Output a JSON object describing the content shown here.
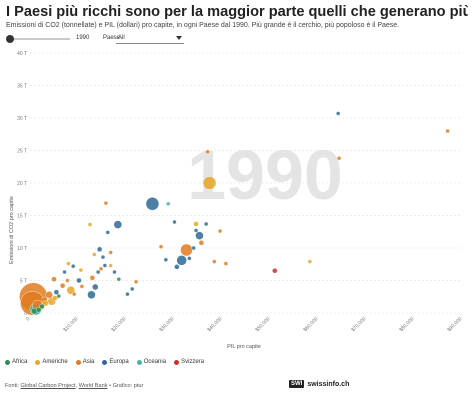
{
  "title": "I Paesi più ricchi sono per la maggior parte quelli che generano più emissioni",
  "subtitle": "Emissioni di CO2 (tonnellate) e PIL (dollari) pro capite, in ogni Paese dal 1990. Più grande è il cerchio, più popoloso è il Paese.",
  "controls": {
    "year": "1990",
    "paese_label": "Paese",
    "paese_value": "All"
  },
  "footer": {
    "prefix": "Fonti: ",
    "src1": "Global Carbon Project",
    "sep": ", ",
    "src2": "World Bank",
    "suffix": " • Grafico: ptur"
  },
  "brand": {
    "box": "SWI",
    "name": "swissinfo.ch"
  },
  "chart_data": {
    "type": "scatter",
    "year_watermark": "1990",
    "xlabel": "PIL pro capite",
    "ylabel": "Emissioni di CO2 pro capite",
    "xlim": [
      0,
      90000
    ],
    "ylim": [
      0,
      40
    ],
    "x_ticks": [
      0,
      10000,
      20000,
      30000,
      40000,
      50000,
      60000,
      70000,
      80000,
      90000
    ],
    "x_tick_labels": [
      "0",
      "$10,000",
      "$20,000",
      "$30,000",
      "$40,000",
      "$50,000",
      "$60,000",
      "$70,000",
      "$80,000",
      "$90,000"
    ],
    "y_ticks": [
      0,
      5,
      10,
      15,
      20,
      25,
      30,
      35,
      40
    ],
    "y_tick_labels": [
      "0",
      "5 T",
      "10 T",
      "15 T",
      "20 T",
      "25 T",
      "30 T",
      "35 T",
      "40 T"
    ],
    "series": [
      {
        "name": "Africa",
        "color": "#2e8b57"
      },
      {
        "name": "Americhe",
        "color": "#e8a623"
      },
      {
        "name": "Asia",
        "color": "#e07b1f"
      },
      {
        "name": "Europa",
        "color": "#2e6a95"
      },
      {
        "name": "Oceania",
        "color": "#45b5aa"
      },
      {
        "name": "Svizzera",
        "color": "#c9302c"
      }
    ],
    "points": [
      {
        "region": "Asia",
        "x": 500,
        "y": 1.5,
        "r": 12
      },
      {
        "region": "Asia",
        "x": 700,
        "y": 2.5,
        "r": 14
      },
      {
        "region": "Oceania",
        "x": 1200,
        "y": 0.6,
        "r": 6
      },
      {
        "region": "Asia",
        "x": 1500,
        "y": 1.2,
        "r": 5
      },
      {
        "region": "Africa",
        "x": 900,
        "y": 0.3,
        "r": 3
      },
      {
        "region": "Africa",
        "x": 1800,
        "y": 0.5,
        "r": 2.5
      },
      {
        "region": "Africa",
        "x": 2500,
        "y": 1.0,
        "r": 2.5
      },
      {
        "region": "Asia",
        "x": 3000,
        "y": 2.0,
        "r": 3
      },
      {
        "region": "Americhe",
        "x": 3200,
        "y": 1.5,
        "r": 3
      },
      {
        "region": "Asia",
        "x": 4000,
        "y": 2.8,
        "r": 3.5
      },
      {
        "region": "Americhe",
        "x": 4500,
        "y": 1.8,
        "r": 4
      },
      {
        "region": "Americhe",
        "x": 5200,
        "y": 2.3,
        "r": 2.5
      },
      {
        "region": "Europa",
        "x": 5500,
        "y": 3.2,
        "r": 2.5
      },
      {
        "region": "Africa",
        "x": 6000,
        "y": 2.6,
        "r": 2
      },
      {
        "region": "Asia",
        "x": 5000,
        "y": 5.2,
        "r": 2.5
      },
      {
        "region": "Asia",
        "x": 6800,
        "y": 4.2,
        "r": 2.5
      },
      {
        "region": "Europa",
        "x": 7200,
        "y": 6.3,
        "r": 2
      },
      {
        "region": "Asia",
        "x": 7800,
        "y": 5.0,
        "r": 2
      },
      {
        "region": "Americhe",
        "x": 8500,
        "y": 3.5,
        "r": 4
      },
      {
        "region": "Asia",
        "x": 9200,
        "y": 2.9,
        "r": 2
      },
      {
        "region": "Americhe",
        "x": 8000,
        "y": 7.6,
        "r": 2
      },
      {
        "region": "Europa",
        "x": 9000,
        "y": 7.2,
        "r": 2
      },
      {
        "region": "Europa",
        "x": 10200,
        "y": 5.0,
        "r": 2.5
      },
      {
        "region": "Asia",
        "x": 10800,
        "y": 4.1,
        "r": 2
      },
      {
        "region": "Americhe",
        "x": 10600,
        "y": 6.6,
        "r": 2
      },
      {
        "region": "Europa",
        "x": 12800,
        "y": 2.8,
        "r": 4
      },
      {
        "region": "Europa",
        "x": 13600,
        "y": 4.0,
        "r": 3
      },
      {
        "region": "Asia",
        "x": 13000,
        "y": 5.4,
        "r": 2.5
      },
      {
        "region": "Europa",
        "x": 14200,
        "y": 6.3,
        "r": 2
      },
      {
        "region": "Asia",
        "x": 14800,
        "y": 6.8,
        "r": 2
      },
      {
        "region": "Europa",
        "x": 15600,
        "y": 7.3,
        "r": 2
      },
      {
        "region": "Americhe",
        "x": 16800,
        "y": 7.3,
        "r": 2
      },
      {
        "region": "Europa",
        "x": 17600,
        "y": 6.3,
        "r": 2
      },
      {
        "region": "Africa",
        "x": 18500,
        "y": 5.2,
        "r": 2
      },
      {
        "region": "Europa",
        "x": 20300,
        "y": 2.9,
        "r": 2
      },
      {
        "region": "Europa",
        "x": 21300,
        "y": 3.7,
        "r": 2
      },
      {
        "region": "Asia",
        "x": 22100,
        "y": 4.8,
        "r": 2
      },
      {
        "region": "Americhe",
        "x": 12500,
        "y": 13.6,
        "r": 2
      },
      {
        "region": "Europa",
        "x": 14500,
        "y": 9.8,
        "r": 2.5
      },
      {
        "region": "Europa",
        "x": 15200,
        "y": 8.6,
        "r": 2
      },
      {
        "region": "Americhe",
        "x": 13400,
        "y": 9.0,
        "r": 2
      },
      {
        "region": "Asia",
        "x": 16800,
        "y": 9.3,
        "r": 2
      },
      {
        "region": "Europa",
        "x": 16200,
        "y": 12.4,
        "r": 2
      },
      {
        "region": "Asia",
        "x": 15800,
        "y": 16.9,
        "r": 2
      },
      {
        "region": "Europa",
        "x": 18300,
        "y": 13.6,
        "r": 4
      },
      {
        "region": "Europa",
        "x": 25500,
        "y": 16.8,
        "r": 6.5
      },
      {
        "region": "Oceania",
        "x": 28800,
        "y": 16.8,
        "r": 2
      },
      {
        "region": "Europa",
        "x": 30100,
        "y": 14.0,
        "r": 2
      },
      {
        "region": "Europa",
        "x": 28300,
        "y": 8.2,
        "r": 2
      },
      {
        "region": "Europa",
        "x": 33200,
        "y": 8.4,
        "r": 2
      },
      {
        "region": "Asia",
        "x": 27300,
        "y": 10.2,
        "r": 2
      },
      {
        "region": "Europa",
        "x": 30600,
        "y": 7.1,
        "r": 2.5
      },
      {
        "region": "Europa",
        "x": 31600,
        "y": 8.1,
        "r": 5
      },
      {
        "region": "Asia",
        "x": 32600,
        "y": 9.7,
        "r": 6
      },
      {
        "region": "Europa",
        "x": 34100,
        "y": 10.0,
        "r": 2
      },
      {
        "region": "Asia",
        "x": 35700,
        "y": 10.8,
        "r": 2.5
      },
      {
        "region": "Europa",
        "x": 35300,
        "y": 11.9,
        "r": 4
      },
      {
        "region": "Americhe",
        "x": 34600,
        "y": 13.7,
        "r": 2.5
      },
      {
        "region": "Europa",
        "x": 34600,
        "y": 12.7,
        "r": 2
      },
      {
        "region": "Europa",
        "x": 36700,
        "y": 13.7,
        "r": 2
      },
      {
        "region": "Asia",
        "x": 38400,
        "y": 7.9,
        "r": 2
      },
      {
        "region": "Asia",
        "x": 39600,
        "y": 12.6,
        "r": 2
      },
      {
        "region": "Asia",
        "x": 40800,
        "y": 7.6,
        "r": 2
      },
      {
        "region": "Americhe",
        "x": 37400,
        "y": 20.0,
        "r": 6.5
      },
      {
        "region": "Asia",
        "x": 37000,
        "y": 24.8,
        "r": 2
      },
      {
        "region": "Svizzera",
        "x": 51000,
        "y": 6.5,
        "r": 2.5
      },
      {
        "region": "Americhe",
        "x": 58300,
        "y": 7.9,
        "r": 2
      },
      {
        "region": "Asia",
        "x": 64400,
        "y": 23.8,
        "r": 2
      },
      {
        "region": "Europa",
        "x": 64200,
        "y": 30.7,
        "r": 2
      },
      {
        "region": "Asia",
        "x": 87000,
        "y": 28.0,
        "r": 2
      }
    ]
  }
}
